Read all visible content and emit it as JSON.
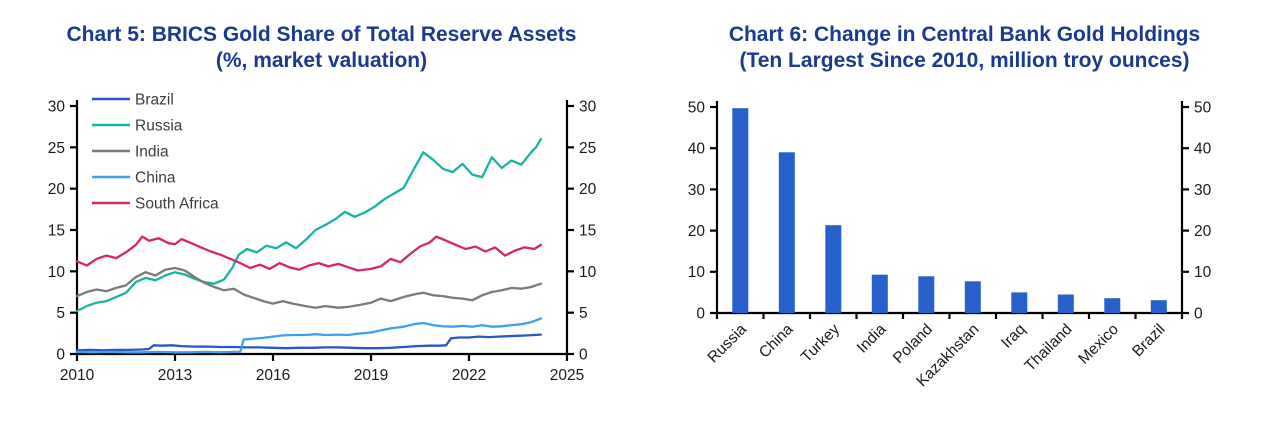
{
  "style": {
    "title_color": "#1b3a8f",
    "axis_color": "#000000",
    "tick_label_color": "#1a1a1a",
    "legend_text_color": "#3d3d3d",
    "background": "#ffffff"
  },
  "chart_data": [
    {
      "type": "line",
      "title": "Chart 5: BRICS Gold Share of Total Reserve Assets",
      "subtitle": "(%, market valuation)",
      "xlabel": "",
      "ylabel": "",
      "xlim": [
        2010,
        2025
      ],
      "ylim": [
        0,
        30
      ],
      "x_ticks": [
        2010,
        2013,
        2016,
        2019,
        2022,
        2025
      ],
      "y_ticks": [
        0,
        5,
        10,
        15,
        20,
        25,
        30
      ],
      "dual_axis": true,
      "grid": false,
      "legend_position": "top-left",
      "series": [
        {
          "name": "Brazil",
          "color": "#2a57c4",
          "points": [
            [
              2010,
              0.45
            ],
            [
              2010.4,
              0.5
            ],
            [
              2010.8,
              0.45
            ],
            [
              2011.2,
              0.5
            ],
            [
              2011.6,
              0.5
            ],
            [
              2012,
              0.55
            ],
            [
              2012.2,
              0.6
            ],
            [
              2012.35,
              1.05
            ],
            [
              2012.6,
              1.0
            ],
            [
              2012.9,
              1.05
            ],
            [
              2013.2,
              0.95
            ],
            [
              2013.6,
              0.9
            ],
            [
              2014,
              0.9
            ],
            [
              2014.4,
              0.85
            ],
            [
              2014.8,
              0.85
            ],
            [
              2015.2,
              0.8
            ],
            [
              2015.6,
              0.8
            ],
            [
              2016,
              0.75
            ],
            [
              2016.4,
              0.7
            ],
            [
              2016.8,
              0.75
            ],
            [
              2017.2,
              0.75
            ],
            [
              2017.6,
              0.8
            ],
            [
              2018,
              0.8
            ],
            [
              2018.4,
              0.75
            ],
            [
              2018.8,
              0.7
            ],
            [
              2019.2,
              0.7
            ],
            [
              2019.6,
              0.75
            ],
            [
              2020,
              0.85
            ],
            [
              2020.4,
              0.95
            ],
            [
              2020.8,
              1.0
            ],
            [
              2021.1,
              1.0
            ],
            [
              2021.3,
              1.05
            ],
            [
              2021.45,
              1.9
            ],
            [
              2021.7,
              2.0
            ],
            [
              2022,
              2.0
            ],
            [
              2022.3,
              2.1
            ],
            [
              2022.6,
              2.05
            ],
            [
              2022.9,
              2.1
            ],
            [
              2023.2,
              2.15
            ],
            [
              2023.5,
              2.2
            ],
            [
              2023.8,
              2.25
            ],
            [
              2024.2,
              2.35
            ]
          ]
        },
        {
          "name": "Russia",
          "color": "#17b3a4",
          "points": [
            [
              2010,
              5.2
            ],
            [
              2010.3,
              5.8
            ],
            [
              2010.6,
              6.2
            ],
            [
              2010.9,
              6.4
            ],
            [
              2011.2,
              6.9
            ],
            [
              2011.5,
              7.4
            ],
            [
              2011.8,
              8.7
            ],
            [
              2012.1,
              9.2
            ],
            [
              2012.4,
              8.9
            ],
            [
              2012.7,
              9.5
            ],
            [
              2013,
              9.9
            ],
            [
              2013.3,
              9.6
            ],
            [
              2013.6,
              9.1
            ],
            [
              2013.9,
              8.7
            ],
            [
              2014.2,
              8.5
            ],
            [
              2014.5,
              9.0
            ],
            [
              2014.75,
              10.4
            ],
            [
              2014.95,
              12.0
            ],
            [
              2015.2,
              12.7
            ],
            [
              2015.5,
              12.3
            ],
            [
              2015.8,
              13.1
            ],
            [
              2016.1,
              12.8
            ],
            [
              2016.4,
              13.5
            ],
            [
              2016.7,
              12.8
            ],
            [
              2017,
              13.8
            ],
            [
              2017.3,
              15.0
            ],
            [
              2017.6,
              15.6
            ],
            [
              2017.9,
              16.3
            ],
            [
              2018.2,
              17.2
            ],
            [
              2018.5,
              16.6
            ],
            [
              2018.8,
              17.1
            ],
            [
              2019.1,
              17.8
            ],
            [
              2019.4,
              18.7
            ],
            [
              2019.7,
              19.4
            ],
            [
              2020,
              20.1
            ],
            [
              2020.3,
              22.3
            ],
            [
              2020.6,
              24.4
            ],
            [
              2020.9,
              23.5
            ],
            [
              2021.2,
              22.4
            ],
            [
              2021.5,
              22.0
            ],
            [
              2021.8,
              23.0
            ],
            [
              2022.1,
              21.7
            ],
            [
              2022.4,
              21.4
            ],
            [
              2022.7,
              23.8
            ],
            [
              2023,
              22.5
            ],
            [
              2023.3,
              23.4
            ],
            [
              2023.6,
              22.9
            ],
            [
              2023.9,
              24.4
            ],
            [
              2024.05,
              25.0
            ],
            [
              2024.2,
              26.0
            ]
          ]
        },
        {
          "name": "India",
          "color": "#7a7a7a",
          "points": [
            [
              2010,
              7.0
            ],
            [
              2010.3,
              7.5
            ],
            [
              2010.6,
              7.8
            ],
            [
              2010.9,
              7.6
            ],
            [
              2011.2,
              8.0
            ],
            [
              2011.5,
              8.3
            ],
            [
              2011.8,
              9.3
            ],
            [
              2012.1,
              9.9
            ],
            [
              2012.4,
              9.5
            ],
            [
              2012.7,
              10.2
            ],
            [
              2013,
              10.4
            ],
            [
              2013.3,
              10.1
            ],
            [
              2013.6,
              9.3
            ],
            [
              2013.9,
              8.6
            ],
            [
              2014.2,
              8.1
            ],
            [
              2014.5,
              7.7
            ],
            [
              2014.8,
              7.9
            ],
            [
              2015.1,
              7.2
            ],
            [
              2015.4,
              6.8
            ],
            [
              2015.7,
              6.4
            ],
            [
              2016,
              6.1
            ],
            [
              2016.3,
              6.4
            ],
            [
              2016.6,
              6.1
            ],
            [
              2017,
              5.8
            ],
            [
              2017.3,
              5.6
            ],
            [
              2017.6,
              5.8
            ],
            [
              2018,
              5.6
            ],
            [
              2018.3,
              5.7
            ],
            [
              2018.6,
              5.9
            ],
            [
              2019,
              6.2
            ],
            [
              2019.3,
              6.7
            ],
            [
              2019.6,
              6.4
            ],
            [
              2020,
              6.9
            ],
            [
              2020.3,
              7.2
            ],
            [
              2020.6,
              7.4
            ],
            [
              2020.9,
              7.1
            ],
            [
              2021.2,
              7.0
            ],
            [
              2021.5,
              6.8
            ],
            [
              2021.8,
              6.7
            ],
            [
              2022.1,
              6.5
            ],
            [
              2022.4,
              7.1
            ],
            [
              2022.7,
              7.5
            ],
            [
              2023,
              7.7
            ],
            [
              2023.3,
              8.0
            ],
            [
              2023.6,
              7.9
            ],
            [
              2023.9,
              8.1
            ],
            [
              2024.2,
              8.5
            ]
          ]
        },
        {
          "name": "China",
          "color": "#3f9ff0",
          "points": [
            [
              2010,
              0.25
            ],
            [
              2010.5,
              0.2
            ],
            [
              2011,
              0.25
            ],
            [
              2011.5,
              0.2
            ],
            [
              2012,
              0.2
            ],
            [
              2012.5,
              0.25
            ],
            [
              2013,
              0.2
            ],
            [
              2013.5,
              0.2
            ],
            [
              2014,
              0.25
            ],
            [
              2014.4,
              0.2
            ],
            [
              2014.8,
              0.25
            ],
            [
              2015.0,
              0.25
            ],
            [
              2015.1,
              1.75
            ],
            [
              2015.4,
              1.85
            ],
            [
              2015.7,
              1.95
            ],
            [
              2016,
              2.1
            ],
            [
              2016.3,
              2.25
            ],
            [
              2016.6,
              2.3
            ],
            [
              2017,
              2.3
            ],
            [
              2017.3,
              2.4
            ],
            [
              2017.6,
              2.3
            ],
            [
              2018,
              2.35
            ],
            [
              2018.3,
              2.3
            ],
            [
              2018.6,
              2.45
            ],
            [
              2019,
              2.6
            ],
            [
              2019.3,
              2.85
            ],
            [
              2019.6,
              3.1
            ],
            [
              2020,
              3.3
            ],
            [
              2020.3,
              3.6
            ],
            [
              2020.6,
              3.75
            ],
            [
              2020.9,
              3.5
            ],
            [
              2021.2,
              3.35
            ],
            [
              2021.5,
              3.3
            ],
            [
              2021.8,
              3.4
            ],
            [
              2022.1,
              3.3
            ],
            [
              2022.4,
              3.5
            ],
            [
              2022.7,
              3.3
            ],
            [
              2023,
              3.35
            ],
            [
              2023.3,
              3.5
            ],
            [
              2023.6,
              3.6
            ],
            [
              2023.9,
              3.85
            ],
            [
              2024.2,
              4.3
            ]
          ]
        },
        {
          "name": "South Africa",
          "color": "#d6246d",
          "points": [
            [
              2010,
              11.2
            ],
            [
              2010.3,
              10.7
            ],
            [
              2010.6,
              11.5
            ],
            [
              2010.9,
              11.9
            ],
            [
              2011.2,
              11.6
            ],
            [
              2011.5,
              12.3
            ],
            [
              2011.8,
              13.2
            ],
            [
              2012,
              14.2
            ],
            [
              2012.2,
              13.7
            ],
            [
              2012.5,
              14.0
            ],
            [
              2012.8,
              13.4
            ],
            [
              2013,
              13.3
            ],
            [
              2013.2,
              13.9
            ],
            [
              2013.5,
              13.4
            ],
            [
              2013.8,
              12.9
            ],
            [
              2014.1,
              12.4
            ],
            [
              2014.4,
              12.0
            ],
            [
              2014.7,
              11.5
            ],
            [
              2015,
              11.0
            ],
            [
              2015.3,
              10.4
            ],
            [
              2015.6,
              10.8
            ],
            [
              2015.9,
              10.3
            ],
            [
              2016.2,
              11.0
            ],
            [
              2016.5,
              10.5
            ],
            [
              2016.8,
              10.2
            ],
            [
              2017.1,
              10.7
            ],
            [
              2017.4,
              11.0
            ],
            [
              2017.7,
              10.6
            ],
            [
              2018,
              10.9
            ],
            [
              2018.3,
              10.5
            ],
            [
              2018.6,
              10.1
            ],
            [
              2019,
              10.3
            ],
            [
              2019.3,
              10.6
            ],
            [
              2019.6,
              11.5
            ],
            [
              2019.9,
              11.1
            ],
            [
              2020.2,
              12.1
            ],
            [
              2020.5,
              13.0
            ],
            [
              2020.8,
              13.5
            ],
            [
              2021,
              14.2
            ],
            [
              2021.3,
              13.7
            ],
            [
              2021.6,
              13.2
            ],
            [
              2021.9,
              12.7
            ],
            [
              2022.2,
              13.0
            ],
            [
              2022.5,
              12.4
            ],
            [
              2022.8,
              12.9
            ],
            [
              2023.1,
              11.9
            ],
            [
              2023.4,
              12.5
            ],
            [
              2023.7,
              12.9
            ],
            [
              2024,
              12.7
            ],
            [
              2024.2,
              13.2
            ]
          ]
        }
      ]
    },
    {
      "type": "bar",
      "title": "Chart 6: Change in Central Bank Gold Holdings",
      "subtitle": "(Ten Largest Since 2010, million troy ounces)",
      "xlabel": "",
      "ylabel": "",
      "categories": [
        "Russia",
        "China",
        "Turkey",
        "India",
        "Poland",
        "Kazakhstan",
        "Iraq",
        "Thailand",
        "Mexico",
        "Brazil"
      ],
      "values": [
        49.7,
        39.0,
        21.3,
        9.3,
        8.9,
        7.7,
        5.0,
        4.5,
        3.6,
        3.1
      ],
      "ylim": [
        0,
        50
      ],
      "y_ticks": [
        0,
        10,
        20,
        30,
        40,
        50
      ],
      "dual_axis": true,
      "grid": false,
      "bar_color": "#2660ca"
    }
  ]
}
